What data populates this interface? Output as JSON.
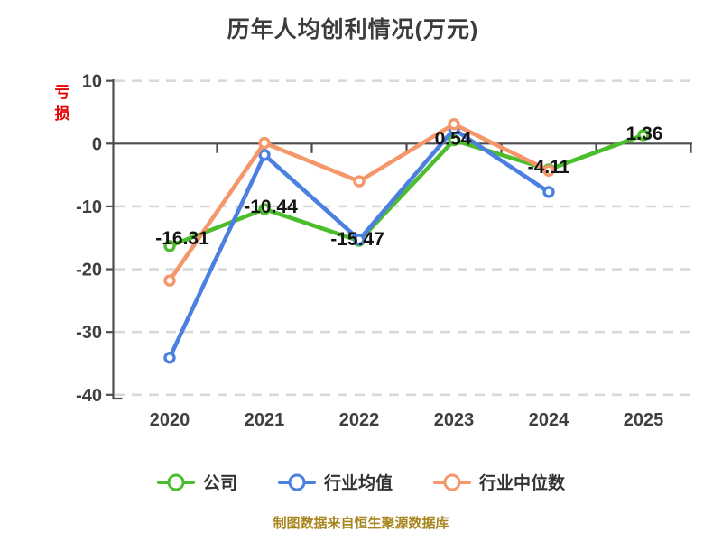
{
  "title": "历年人均创利情况(万元)",
  "y_axis_annotation": {
    "text": "亏损",
    "color": "#e60000"
  },
  "footer": {
    "text": "制图数据来自恒生聚源数据库",
    "color": "#a8861f"
  },
  "chart_data": {
    "type": "line",
    "title": "历年人均创利情况(万元)",
    "categories": [
      "2020",
      "2021",
      "2022",
      "2023",
      "2024",
      "2025"
    ],
    "yticks": [
      10,
      0,
      -10,
      -20,
      -30,
      -40
    ],
    "ylim": [
      -40,
      10
    ],
    "grid": "horizontal-dashed",
    "legend_position": "bottom",
    "marker_style": "white-filled-circle",
    "series": [
      {
        "name": "公司",
        "color": "#4cbd2c",
        "values": [
          -16.31,
          -10.44,
          -15.47,
          0.54,
          -4.11,
          1.36
        ],
        "labels": [
          "-16.31",
          "-10.44",
          "-15.47",
          "0.54",
          "-4.11",
          "1.36"
        ]
      },
      {
        "name": "行业均值",
        "color": "#4b80e1",
        "values": [
          -34.1,
          -1.8,
          -15.3,
          2.3,
          -7.7,
          null
        ]
      },
      {
        "name": "行业中位数",
        "color": "#f5976b",
        "values": [
          -21.8,
          0.1,
          -6.0,
          3.1,
          -4.3,
          null
        ]
      }
    ]
  }
}
